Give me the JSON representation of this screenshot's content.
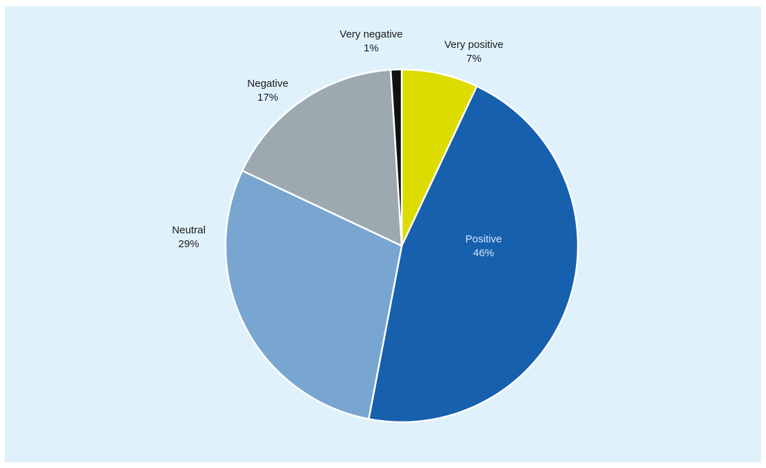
{
  "chart_data": {
    "type": "pie",
    "title": "",
    "start_angle_deg": 0,
    "direction": "clockwise",
    "slices": [
      {
        "label": "Very positive",
        "value": 7,
        "value_label": "7%",
        "color": "#dcdc00",
        "label_color": "#1a1a1a",
        "label_placement": "outside"
      },
      {
        "label": "Positive",
        "value": 46,
        "value_label": "46%",
        "color": "#1760ae",
        "label_color": "#d9e6f5",
        "label_placement": "inside"
      },
      {
        "label": "Neutral",
        "value": 29,
        "value_label": "29%",
        "color": "#78a6d1",
        "label_color": "#1a1a1a",
        "label_placement": "outside"
      },
      {
        "label": "Negative",
        "value": 17,
        "value_label": "17%",
        "color": "#9ca9b0",
        "label_color": "#1a1a1a",
        "label_placement": "outside"
      },
      {
        "label": "Very negative",
        "value": 1,
        "value_label": "1%",
        "color": "#111111",
        "label_color": "#1a1a1a",
        "label_placement": "outside"
      }
    ],
    "background": "#dff1fa",
    "slice_border_color": "#ffffff"
  }
}
